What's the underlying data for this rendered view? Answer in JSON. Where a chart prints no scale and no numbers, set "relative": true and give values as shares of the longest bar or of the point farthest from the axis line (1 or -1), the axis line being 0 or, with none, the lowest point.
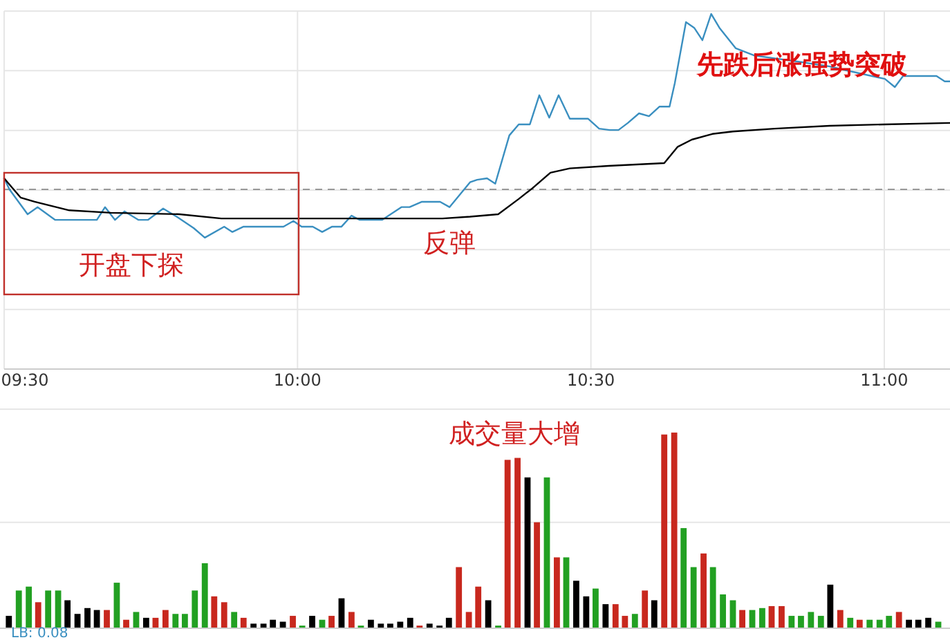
{
  "chart_data": [
    {
      "type": "line",
      "relative": true,
      "tick_labels": "x",
      "grid": true,
      "line_style": "solid",
      "xlim": [
        9.5,
        11.112
      ],
      "xticks": [
        {
          "value": 9.5,
          "label": "09:30"
        },
        {
          "value": 10,
          "label": "10:00"
        },
        {
          "value": 10.5,
          "label": "10:30"
        },
        {
          "value": 11,
          "label": "11:00"
        }
      ],
      "series": [
        {
          "color": "#3a8fc0",
          "x": [
            9.5,
            9.509,
            9.54,
            9.557,
            9.587,
            9.658,
            9.672,
            9.689,
            9.705,
            9.729,
            9.745,
            9.771,
            9.795,
            9.823,
            9.842,
            9.875,
            9.889,
            9.908,
            9.976,
            9.993,
            10.007,
            10.026,
            10.042,
            10.059,
            10.075,
            10.092,
            10.106,
            10.144,
            10.177,
            10.191,
            10.212,
            10.243,
            10.259,
            10.294,
            10.306,
            10.323,
            10.337,
            10.361,
            10.377,
            10.396,
            10.412,
            10.429,
            10.445,
            10.464,
            10.495,
            10.514,
            10.532,
            10.547,
            10.563,
            10.582,
            10.599,
            10.617,
            10.634,
            10.643,
            10.662,
            10.676,
            10.69,
            10.705,
            10.719,
            10.747,
            10.778,
            10.813,
            10.86,
            10.907,
            10.927,
            11.001,
            11.018,
            11.032,
            11.089,
            11.103,
            11.112
          ],
          "values": [
            0.537,
            0.506,
            0.436,
            0.456,
            0.42,
            0.42,
            0.456,
            0.42,
            0.444,
            0.42,
            0.42,
            0.452,
            0.428,
            0.397,
            0.37,
            0.401,
            0.386,
            0.401,
            0.401,
            0.417,
            0.401,
            0.401,
            0.386,
            0.401,
            0.401,
            0.432,
            0.42,
            0.42,
            0.456,
            0.456,
            0.471,
            0.471,
            0.456,
            0.526,
            0.533,
            0.537,
            0.522,
            0.658,
            0.689,
            0.689,
            0.771,
            0.708,
            0.771,
            0.705,
            0.705,
            0.677,
            0.673,
            0.673,
            0.693,
            0.72,
            0.712,
            0.739,
            0.739,
            0.805,
            0.977,
            0.961,
            0.926,
            1,
            0.961,
            0.903,
            0.883,
            0.875,
            0.864,
            0.852,
            0.844,
            0.817,
            0.794,
            0.825,
            0.825,
            0.81,
            0.81
          ]
        },
        {
          "color": "#000000",
          "x": [
            9.5,
            9.528,
            9.552,
            9.611,
            9.682,
            9.799,
            9.87,
            9.998,
            10.247,
            10.294,
            10.342,
            10.377,
            10.401,
            10.431,
            10.464,
            10.53,
            10.625,
            10.648,
            10.672,
            10.707,
            10.742,
            10.813,
            10.907,
            11.001,
            11.112
          ],
          "values": [
            0.537,
            0.483,
            0.471,
            0.447,
            0.44,
            0.436,
            0.424,
            0.424,
            0.424,
            0.429,
            0.436,
            0.479,
            0.51,
            0.553,
            0.565,
            0.572,
            0.58,
            0.626,
            0.646,
            0.662,
            0.669,
            0.677,
            0.685,
            0.689,
            0.693
          ]
        }
      ],
      "ref_lines": [
        {
          "axis": "y",
          "value": 0.506,
          "color": "#999999",
          "line_style": "dashed"
        }
      ],
      "annotations": [
        "开盘下探",
        "反弹",
        "先跌后涨强势突破"
      ]
    },
    {
      "type": "bar",
      "relative": true,
      "tick_labels": false,
      "ref_lines": [
        {
          "axis": "y",
          "value": 0.54,
          "color": "#e6e6e6",
          "line_style": "solid"
        }
      ],
      "xlim": [
        9.5,
        11.112
      ],
      "x": [
        9.508,
        9.525,
        9.542,
        9.558,
        9.575,
        9.592,
        9.608,
        9.625,
        9.642,
        9.658,
        9.675,
        9.692,
        9.708,
        9.725,
        9.742,
        9.758,
        9.775,
        9.792,
        9.808,
        9.825,
        9.842,
        9.858,
        9.875,
        9.892,
        9.908,
        9.925,
        9.942,
        9.958,
        9.975,
        9.992,
        10.008,
        10.025,
        10.042,
        10.058,
        10.075,
        10.092,
        10.108,
        10.125,
        10.142,
        10.158,
        10.175,
        10.192,
        10.208,
        10.225,
        10.242,
        10.258,
        10.275,
        10.292,
        10.308,
        10.325,
        10.342,
        10.358,
        10.375,
        10.392,
        10.408,
        10.425,
        10.442,
        10.458,
        10.475,
        10.492,
        10.508,
        10.525,
        10.542,
        10.558,
        10.575,
        10.592,
        10.608,
        10.625,
        10.642,
        10.658,
        10.675,
        10.692,
        10.708,
        10.725,
        10.742,
        10.758,
        10.775,
        10.792,
        10.808,
        10.825,
        10.842,
        10.858,
        10.875,
        10.892,
        10.908,
        10.925,
        10.942,
        10.958,
        10.975,
        10.992,
        11.008,
        11.025,
        11.042,
        11.058,
        11.075,
        11.092
      ],
      "values": [
        0.06,
        0.19,
        0.21,
        0.13,
        0.19,
        0.19,
        0.14,
        0.07,
        0.1,
        0.09,
        0.09,
        0.23,
        0.04,
        0.08,
        0.05,
        0.05,
        0.09,
        0.07,
        0.07,
        0.19,
        0.33,
        0.16,
        0.13,
        0.08,
        0.05,
        0.02,
        0.02,
        0.04,
        0.03,
        0.06,
        0.01,
        0.06,
        0.04,
        0.06,
        0.15,
        0.08,
        0.01,
        0.04,
        0.02,
        0.02,
        0.03,
        0.05,
        0.01,
        0.02,
        0.01,
        0.05,
        0.31,
        0.08,
        0.21,
        0.14,
        0.01,
        0.86,
        0.87,
        0.77,
        0.54,
        0.77,
        0.36,
        0.36,
        0.24,
        0.16,
        0.2,
        0.12,
        0.12,
        0.06,
        0.07,
        0.19,
        0.14,
        0.99,
        1,
        0.51,
        0.31,
        0.38,
        0.31,
        0.17,
        0.14,
        0.09,
        0.09,
        0.1,
        0.11,
        0.11,
        0.06,
        0.06,
        0.08,
        0.06,
        0.22,
        0.09,
        0.05,
        0.04,
        0.04,
        0.04,
        0.06,
        0.08,
        0.04,
        0.04,
        0.05,
        0.03
      ],
      "colors": [
        "#000000",
        "#22a022",
        "#22a022",
        "#c8281e",
        "#22a022",
        "#22a022",
        "#000000",
        "#000000",
        "#000000",
        "#000000",
        "#c8281e",
        "#22a022",
        "#c8281e",
        "#22a022",
        "#000000",
        "#c8281e",
        "#c8281e",
        "#22a022",
        "#22a022",
        "#22a022",
        "#22a022",
        "#c8281e",
        "#c8281e",
        "#22a022",
        "#c8281e",
        "#000000",
        "#000000",
        "#000000",
        "#000000",
        "#c8281e",
        "#22a022",
        "#000000",
        "#22a022",
        "#c8281e",
        "#000000",
        "#c8281e",
        "#22a022",
        "#000000",
        "#000000",
        "#000000",
        "#000000",
        "#000000",
        "#c8281e",
        "#000000",
        "#000000",
        "#000000",
        "#c8281e",
        "#c8281e",
        "#c8281e",
        "#000000",
        "#22a022",
        "#c8281e",
        "#c8281e",
        "#000000",
        "#c8281e",
        "#22a022",
        "#c8281e",
        "#22a022",
        "#000000",
        "#000000",
        "#22a022",
        "#000000",
        "#c8281e",
        "#c8281e",
        "#22a022",
        "#c8281e",
        "#000000",
        "#c8281e",
        "#c8281e",
        "#22a022",
        "#22a022",
        "#c8281e",
        "#22a022",
        "#22a022",
        "#22a022",
        "#c8281e",
        "#22a022",
        "#22a022",
        "#c8281e",
        "#c8281e",
        "#22a022",
        "#22a022",
        "#22a022",
        "#22a022",
        "#000000",
        "#c8281e",
        "#22a022",
        "#c8281e",
        "#22a022",
        "#22a022",
        "#22a022",
        "#c8281e",
        "#000000",
        "#000000",
        "#000000",
        "#22a022"
      ],
      "annotations": [
        "成交量大增",
        "LB: 0.08"
      ]
    }
  ]
}
